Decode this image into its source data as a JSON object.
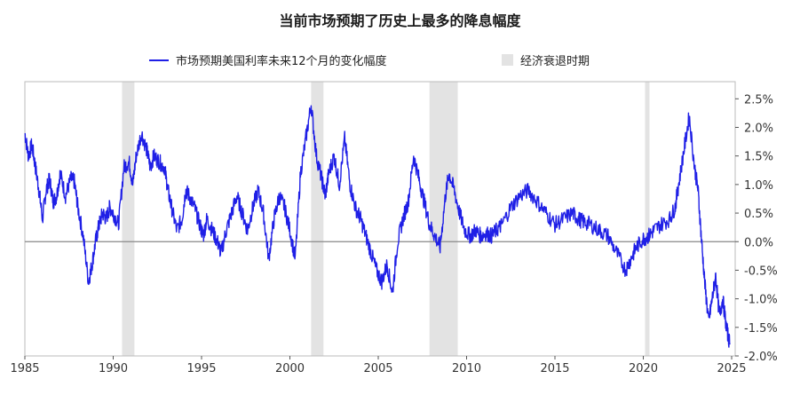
{
  "title": "当前市场预期了历史上最多的降息幅度",
  "legend": {
    "series_label": "市场预期美国利率未来12个月的变化幅度",
    "recession_label": "经济衰退时期"
  },
  "colors": {
    "series": "#1f1fe6",
    "recession": "#e3e3e3",
    "zero_line": "#888888",
    "axis": "#555555"
  },
  "chart_data": {
    "type": "line",
    "title": "当前市场预期了历史上最多的降息幅度",
    "xlabel": "",
    "ylabel": "",
    "xlim": [
      1985,
      2025.2
    ],
    "ylim": [
      -2.0,
      2.8
    ],
    "x_ticks": [
      1985,
      1990,
      1995,
      2000,
      2005,
      2010,
      2015,
      2020,
      2025
    ],
    "y_ticks": [
      -2.0,
      -1.5,
      -1.0,
      -0.5,
      0.0,
      0.5,
      1.0,
      1.5,
      2.0,
      2.5
    ],
    "y_tick_labels": [
      "-2.0%",
      "-1.5%",
      "-1.0%",
      "-0.5%",
      "0.0%",
      "0.5%",
      "1.0%",
      "1.5%",
      "2.0%",
      "2.5%"
    ],
    "legend_position": "top",
    "recessions": [
      [
        1990.5,
        1991.2
      ],
      [
        2001.2,
        2001.9
      ],
      [
        2007.9,
        2009.5
      ],
      [
        2020.1,
        2020.35
      ]
    ],
    "series": [
      {
        "name": "市场预期美国利率未来12个月的变化幅度",
        "x": [
          1985.0,
          1985.2,
          1985.4,
          1985.6,
          1985.8,
          1986.0,
          1986.2,
          1986.4,
          1986.6,
          1986.8,
          1987.0,
          1987.3,
          1987.6,
          1987.8,
          1988.0,
          1988.3,
          1988.6,
          1988.8,
          1989.0,
          1989.2,
          1989.4,
          1989.6,
          1989.8,
          1990.0,
          1990.3,
          1990.6,
          1990.9,
          1991.1,
          1991.3,
          1991.6,
          1991.9,
          1992.1,
          1992.3,
          1992.6,
          1992.9,
          1993.1,
          1993.3,
          1993.6,
          1993.9,
          1994.1,
          1994.3,
          1994.6,
          1994.9,
          1995.1,
          1995.3,
          1995.6,
          1995.9,
          1996.1,
          1996.4,
          1996.7,
          1997.0,
          1997.3,
          1997.6,
          1997.9,
          1998.2,
          1998.5,
          1998.8,
          1999.1,
          1999.4,
          1999.7,
          2000.0,
          2000.3,
          2000.6,
          2000.9,
          2001.2,
          2001.5,
          2001.8,
          2002.0,
          2002.2,
          2002.5,
          2002.8,
          2003.1,
          2003.4,
          2003.7,
          2004.0,
          2004.3,
          2004.6,
          2004.9,
          2005.2,
          2005.5,
          2005.8,
          2006.1,
          2006.4,
          2006.7,
          2007.0,
          2007.3,
          2007.6,
          2007.9,
          2008.2,
          2008.5,
          2008.8,
          2009.0,
          2009.3,
          2009.6,
          2009.9,
          2010.2,
          2010.5,
          2010.8,
          2011.1,
          2011.4,
          2011.7,
          2012.0,
          2012.5,
          2013.0,
          2013.5,
          2014.0,
          2014.5,
          2015.0,
          2015.5,
          2016.0,
          2016.3,
          2016.6,
          2017.0,
          2017.5,
          2018.0,
          2018.5,
          2019.0,
          2019.3,
          2019.6,
          2020.0,
          2020.3,
          2020.6,
          2021.0,
          2021.5,
          2021.8,
          2022.0,
          2022.3,
          2022.6,
          2022.9,
          2023.1,
          2023.3,
          2023.5,
          2023.7,
          2023.9,
          2024.1,
          2024.3,
          2024.5,
          2024.7,
          2024.9
        ],
        "values": [
          1.9,
          1.5,
          1.7,
          1.3,
          0.9,
          0.4,
          0.9,
          1.1,
          0.7,
          0.8,
          1.2,
          0.8,
          1.1,
          1.05,
          0.6,
          0.1,
          -0.7,
          -0.4,
          0.0,
          0.3,
          0.5,
          0.4,
          0.6,
          0.5,
          0.3,
          1.3,
          1.4,
          1.0,
          1.5,
          1.9,
          1.6,
          1.3,
          1.5,
          1.4,
          1.3,
          0.9,
          0.6,
          0.2,
          0.4,
          0.9,
          0.8,
          0.6,
          0.3,
          0.1,
          0.4,
          0.2,
          0.0,
          -0.2,
          0.2,
          0.5,
          0.8,
          0.5,
          0.2,
          0.6,
          0.9,
          0.5,
          -0.3,
          0.4,
          0.8,
          0.6,
          0.2,
          -0.3,
          1.2,
          1.8,
          2.4,
          1.5,
          1.1,
          0.8,
          1.2,
          1.5,
          1.0,
          1.8,
          1.0,
          0.6,
          0.4,
          0.1,
          -0.2,
          -0.5,
          -0.7,
          -0.4,
          -0.9,
          0.0,
          0.4,
          0.7,
          1.5,
          1.1,
          0.7,
          0.3,
          0.1,
          -0.1,
          0.8,
          1.2,
          0.9,
          0.5,
          0.2,
          0.1,
          0.2,
          0.1,
          0.15,
          0.1,
          0.2,
          0.3,
          0.6,
          0.8,
          0.9,
          0.7,
          0.5,
          0.3,
          0.4,
          0.5,
          0.4,
          0.35,
          0.3,
          0.2,
          0.1,
          -0.2,
          -0.5,
          -0.3,
          -0.1,
          0.05,
          0.1,
          0.2,
          0.3,
          0.4,
          0.6,
          1.0,
          1.6,
          2.2,
          1.3,
          0.9,
          0.0,
          -0.8,
          -1.4,
          -1.0,
          -0.6,
          -1.3,
          -1.0,
          -1.5,
          -1.8
        ]
      }
    ]
  }
}
